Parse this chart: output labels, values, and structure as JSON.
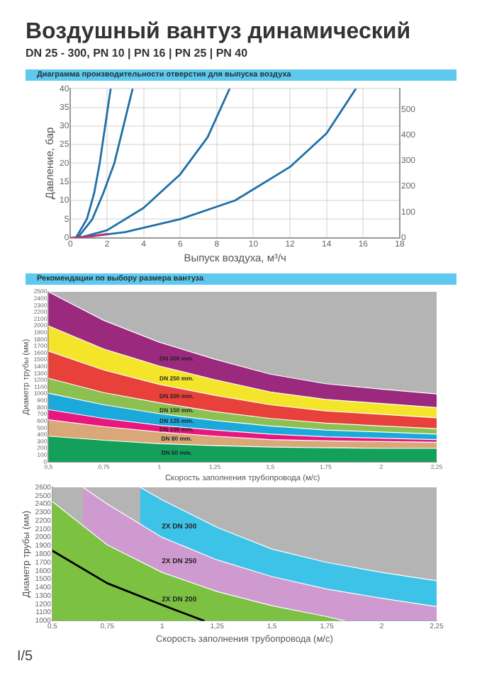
{
  "chart_data": [
    {
      "type": "line",
      "title": "Воздушный вантуз динамический",
      "subtitle": "DN 25 - 300, PN 10 | PN 16 | PN 25 | PN 40",
      "annotations": [
        "Диаграмма производительности отверстия для выпуска воздуха"
      ],
      "xlabel": "Выпуск воздуха, м³/ч",
      "ylabel": "Давление, бар",
      "marker": "none",
      "grid": true,
      "xlim": [
        0,
        18
      ],
      "xticks": [
        0,
        2,
        4,
        6,
        8,
        10,
        12,
        14,
        16,
        18
      ],
      "ylim": [
        0,
        40
      ],
      "yticks": [
        0,
        5,
        10,
        15,
        20,
        25,
        30,
        35,
        40
      ],
      "y2lim": [
        0,
        580
      ],
      "y2ticks": [
        0,
        100,
        200,
        300,
        400,
        500
      ],
      "series": [
        {
          "color": "#c0306a",
          "x": [
            0,
            1,
            2
          ],
          "values": [
            0,
            0.3,
            1
          ]
        },
        {
          "color": "#1f6fa8",
          "x": [
            0.3,
            0.9,
            1.3,
            1.6,
            1.9,
            2.2
          ],
          "values": [
            0,
            5,
            12,
            20,
            30,
            40
          ]
        },
        {
          "color": "#1f6fa8",
          "x": [
            0.4,
            1.2,
            1.8,
            2.4,
            2.9,
            3.4
          ],
          "values": [
            0,
            5,
            12,
            20,
            30,
            40
          ]
        },
        {
          "color": "#1f6fa8",
          "x": [
            0.5,
            2,
            4,
            6,
            7.5,
            8.7
          ],
          "values": [
            0,
            2,
            8,
            17,
            27,
            40
          ]
        },
        {
          "color": "#1f6fa8",
          "x": [
            0.5,
            3,
            6,
            9,
            12,
            14,
            15.6
          ],
          "values": [
            0,
            1.5,
            5,
            10,
            19,
            28,
            40
          ]
        }
      ]
    },
    {
      "type": "area",
      "title": "Рекомендации по выбору размера вантуза",
      "xlabel": "Скорость заполнения трубопровода (м/с)",
      "ylabel": "Диаметр трубы (мм)",
      "x": [
        0.5,
        0.75,
        1,
        1.25,
        1.5,
        1.75,
        2,
        2.25
      ],
      "xlim": [
        0.5,
        2.25
      ],
      "xticks": [
        {
          "value": 0.5,
          "label": "0,5"
        },
        {
          "value": 0.75,
          "label": "0,75"
        },
        1,
        {
          "value": 1.25,
          "label": "1,25"
        },
        {
          "value": 1.5,
          "label": "1,5"
        },
        {
          "value": 1.75,
          "label": "1,75"
        },
        2,
        {
          "value": 2.25,
          "label": "2,25"
        }
      ],
      "ylim": [
        0,
        2500
      ],
      "yticks": [
        0,
        100,
        200,
        300,
        400,
        500,
        600,
        700,
        800,
        900,
        1000,
        1100,
        1200,
        1300,
        1400,
        1500,
        1600,
        1700,
        1800,
        1900,
        2000,
        2100,
        2200,
        2300,
        2400,
        2500
      ],
      "series": [
        {
          "name": "DN 50 mm.",
          "color": "#12a05a",
          "values": [
            380,
            320,
            270,
            240,
            220,
            210,
            200,
            200
          ]
        },
        {
          "name": "DN 80 mm.",
          "color": "#d8a878",
          "values": [
            620,
            520,
            440,
            380,
            330,
            310,
            300,
            290
          ]
        },
        {
          "name": "DN 100 mm.",
          "color": "#e8177f",
          "values": [
            770,
            640,
            540,
            470,
            410,
            370,
            350,
            330
          ]
        },
        {
          "name": "DN 125 mm.",
          "color": "#1ba9dc",
          "values": [
            1010,
            840,
            710,
            610,
            530,
            470,
            440,
            410
          ]
        },
        {
          "name": "DN 150 mm.",
          "color": "#8cc152",
          "values": [
            1230,
            1020,
            870,
            740,
            640,
            570,
            530,
            490
          ]
        },
        {
          "name": "DN 200 mm.",
          "color": "#e8403a",
          "values": [
            1630,
            1350,
            1140,
            980,
            840,
            750,
            700,
            650
          ]
        },
        {
          "name": "DN 250 mm.",
          "color": "#f5e52a",
          "values": [
            2000,
            1660,
            1410,
            1210,
            1030,
            920,
            860,
            800
          ]
        },
        {
          "name": "DN 300 mm.",
          "color": "#9b2a7f",
          "values": [
            2500,
            2080,
            1760,
            1510,
            1290,
            1150,
            1070,
            1000
          ]
        }
      ]
    },
    {
      "type": "area",
      "xlabel": "Скорость заполнения трубопровода (м/с)",
      "ylabel": "Диаметр трубы (мм)",
      "annotations": [
        "I/5"
      ],
      "xlim": [
        0.5,
        2.25
      ],
      "xticks": [
        {
          "value": 0.5,
          "label": "0,5"
        },
        {
          "value": 0.75,
          "label": "0,75"
        },
        1,
        {
          "value": 1.25,
          "label": "1,25"
        },
        {
          "value": 1.5,
          "label": "1,5"
        },
        {
          "value": 1.75,
          "label": "1,75"
        },
        2,
        {
          "value": 2.25,
          "label": "2,25"
        }
      ],
      "ylim": [
        1000,
        2600
      ],
      "yticks": [
        1000,
        1100,
        1200,
        1300,
        1400,
        1500,
        1600,
        1700,
        1800,
        1900,
        2000,
        2100,
        2200,
        2300,
        2400,
        2500,
        2600
      ],
      "series": [
        {
          "type": "line",
          "color": "#000000",
          "x": [
            0.5,
            0.75,
            1,
            1.19
          ],
          "values": [
            1840,
            1450,
            1190,
            1000
          ]
        },
        {
          "name": "2X DN 200",
          "color": "#7dc142",
          "x": [
            0.5,
            0.75,
            1,
            1.25,
            1.5,
            1.75,
            1.83
          ],
          "values": [
            2430,
            1910,
            1580,
            1350,
            1180,
            1050,
            1000
          ]
        },
        {
          "name": "2X DN 250",
          "color": "#cf9ad0",
          "x": [
            0.64,
            0.75,
            1,
            1.25,
            1.5,
            1.75,
            2,
            2.25
          ],
          "values": [
            2600,
            2400,
            2000,
            1730,
            1530,
            1380,
            1270,
            1170
          ]
        },
        {
          "name": "2X DN 300",
          "color": "#3ec3e8",
          "x": [
            0.9,
            1,
            1.25,
            1.5,
            1.75,
            2,
            2.25
          ],
          "values": [
            2600,
            2450,
            2120,
            1860,
            1700,
            1580,
            1480
          ]
        }
      ]
    }
  ]
}
